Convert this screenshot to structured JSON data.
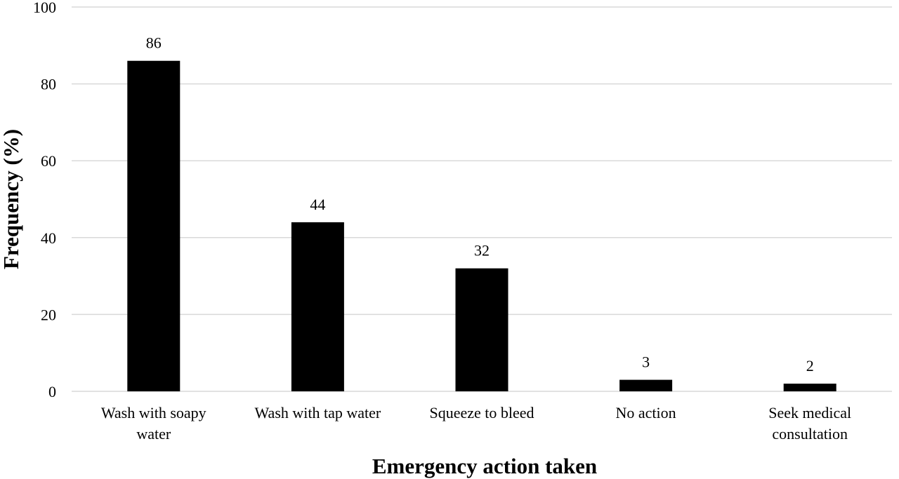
{
  "chart_data": {
    "type": "bar",
    "title": "",
    "xlabel": "Emergency action taken",
    "ylabel": "Frequency (%)",
    "categories": [
      [
        "Wash with soapy",
        "water"
      ],
      [
        "Wash with tap water"
      ],
      [
        "Squeeze to bleed"
      ],
      [
        "No action"
      ],
      [
        "Seek medical",
        "consultation"
      ]
    ],
    "values": [
      86,
      44,
      32,
      3,
      2
    ],
    "data_labels": [
      "86",
      "44",
      "32",
      "3",
      "2"
    ],
    "ylim": [
      0,
      100
    ],
    "yticks": [
      0,
      20,
      40,
      60,
      80,
      100
    ],
    "ytick_labels": [
      "0",
      "20",
      "40",
      "60",
      "80",
      "100"
    ],
    "grid": true,
    "legend": false,
    "colors": {
      "bar": "#000000",
      "grid": "#d9d9d9",
      "text": "#000000"
    }
  }
}
